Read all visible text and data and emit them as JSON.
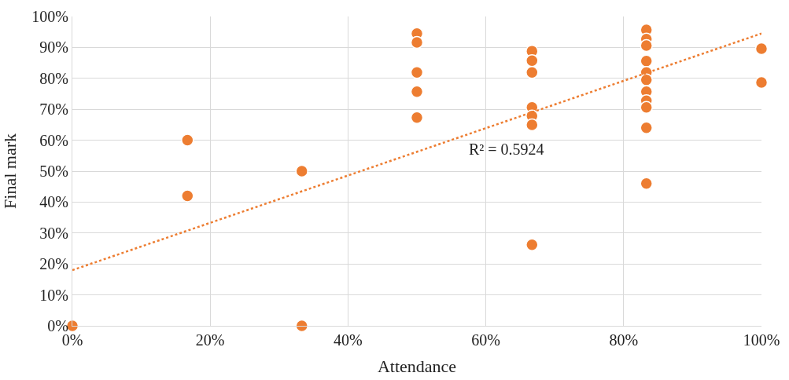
{
  "chart_data": {
    "type": "scatter",
    "xlabel": "Attendance",
    "ylabel": "Final mark",
    "series": [
      {
        "color": "#ed7d31",
        "marker": "circle",
        "x": [
          0,
          16.7,
          16.7,
          33.3,
          33.3,
          50,
          50,
          50,
          50,
          50,
          66.7,
          66.7,
          66.7,
          66.7,
          66.7,
          66.7,
          66.7,
          83.3,
          83.3,
          83.3,
          83.3,
          83.3,
          83.3,
          83.3,
          83.3,
          83.3,
          83.3,
          83.3,
          100,
          100
        ],
        "values": [
          0,
          60,
          42,
          50,
          0,
          94.5,
          91.6,
          81.9,
          75.7,
          67.3,
          88.8,
          85.7,
          81.9,
          70.6,
          67.8,
          65,
          26.2,
          95.7,
          92.7,
          90.6,
          85.6,
          81.9,
          79.5,
          75.7,
          72.8,
          70.6,
          64,
          46,
          89.6,
          78.7
        ]
      },
      {
        "type": "line",
        "color": "#ed7d31",
        "line_style": "dotted",
        "x": [
          0,
          100
        ],
        "values": [
          18,
          94.5
        ]
      }
    ],
    "annotations": [
      "R² = 0.5924"
    ],
    "xlim": [
      0,
      100
    ],
    "ylim": [
      0,
      100
    ],
    "xticks": [
      {
        "value": 0,
        "label": "0%"
      },
      {
        "value": 20,
        "label": "20%"
      },
      {
        "value": 40,
        "label": "40%"
      },
      {
        "value": 60,
        "label": "60%"
      },
      {
        "value": 80,
        "label": "80%"
      },
      {
        "value": 100,
        "label": "100%"
      }
    ],
    "yticks": [
      {
        "value": 0,
        "label": "0%"
      },
      {
        "value": 10,
        "label": "10%"
      },
      {
        "value": 20,
        "label": "20%"
      },
      {
        "value": 30,
        "label": "30%"
      },
      {
        "value": 40,
        "label": "40%"
      },
      {
        "value": 50,
        "label": "50%"
      },
      {
        "value": 60,
        "label": "60%"
      },
      {
        "value": 70,
        "label": "70%"
      },
      {
        "value": 80,
        "label": "80%"
      },
      {
        "value": 90,
        "label": "90%"
      },
      {
        "value": 100,
        "label": "100%"
      }
    ],
    "grid": true
  }
}
